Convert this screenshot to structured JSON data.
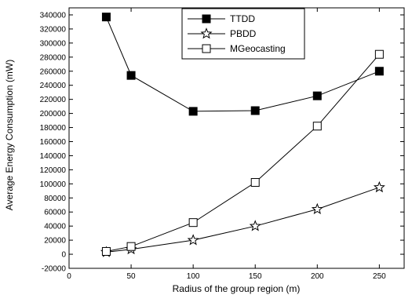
{
  "chart_data": {
    "type": "line",
    "xlabel": "Radius of the group region (m)",
    "ylabel": "Average Energy Consumption (mW)",
    "xlim": [
      0,
      270
    ],
    "ylim": [
      -20000,
      350000
    ],
    "x_ticks": [
      "0",
      "50",
      "100",
      "150",
      "200",
      "250"
    ],
    "y_ticks": [
      "-20000",
      "0",
      "20000",
      "40000",
      "60000",
      "80000",
      "100000",
      "120000",
      "140000",
      "160000",
      "180000",
      "200000",
      "220000",
      "240000",
      "260000",
      "280000",
      "300000",
      "320000",
      "340000"
    ],
    "legend_position": "top-right",
    "grid": false,
    "series": [
      {
        "name": "TTDD",
        "marker": "filled-square",
        "x": [
          30,
          50,
          100,
          150,
          200,
          250
        ],
        "y": [
          337000,
          254000,
          203000,
          204000,
          225000,
          260000
        ]
      },
      {
        "name": "PBDD",
        "marker": "open-star",
        "x": [
          30,
          50,
          100,
          150,
          200,
          250
        ],
        "y": [
          3000,
          7000,
          20000,
          40000,
          64000,
          95000
        ]
      },
      {
        "name": "MGeocasting",
        "marker": "open-square",
        "x": [
          30,
          50,
          100,
          150,
          200,
          250
        ],
        "y": [
          4000,
          11000,
          45000,
          102000,
          182000,
          284000
        ]
      }
    ]
  }
}
